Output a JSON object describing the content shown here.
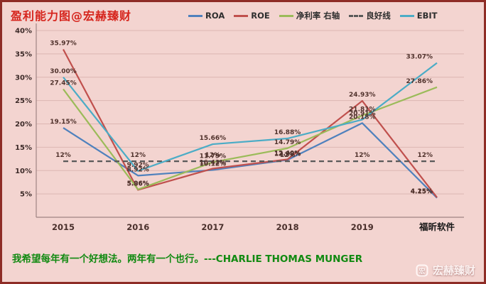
{
  "title": "盈利能力图@宏赫臻财",
  "footer": {
    "quote": "我希望每年有一个好想法。两年有一个也行。---CHARLIE THOMAS MUNGER",
    "watermark": "宏赫臻财",
    "logo_glyph": "宏"
  },
  "colors": {
    "background": "#f3d4d0",
    "frame_border": "#8e2c26",
    "title": "#d6251d",
    "quote": "#118a11",
    "gridline": "#dcb6b2",
    "axis": "#a08484"
  },
  "chart_data": {
    "type": "line",
    "title": "盈利能力图@宏赫臻财",
    "categories": [
      "2015",
      "2016",
      "2017",
      "2018",
      "2019",
      "福昕软件"
    ],
    "ylim": [
      0,
      40
    ],
    "ytick_values": [
      5,
      10,
      15,
      20,
      25,
      30,
      35,
      40
    ],
    "ytick_labels": [
      "5%",
      "10%",
      "15%",
      "20%",
      "25%",
      "30%",
      "35%",
      "40%"
    ],
    "grid": true,
    "legend_position": "top",
    "series": [
      {
        "name": "ROA",
        "color": "#4F81BD",
        "dashed": false,
        "values": [
          19.15,
          8.92,
          10.12,
          12.28,
          20.18,
          4.15
        ],
        "labels": [
          "19.15%",
          "8.92%",
          "10.12%",
          "12.28%",
          "20.18%",
          "4.15%"
        ]
      },
      {
        "name": "ROE",
        "color": "#C0504D",
        "dashed": false,
        "values": [
          35.97,
          5.86,
          10.42,
          12.4,
          24.93,
          4.25
        ],
        "labels": [
          "35.97%",
          "5.86%",
          "10.42%",
          "12.40%",
          "24.93%",
          "4.25%"
        ]
      },
      {
        "name": "净利率 右轴",
        "color": "#9BBB59",
        "dashed": false,
        "values": [
          27.45,
          5.96,
          11.79,
          14.79,
          21.81,
          27.86
        ],
        "labels": [
          "27.45%",
          "5.96%",
          "11.79%",
          "14.79%",
          "21.81%",
          "27.86%"
        ]
      },
      {
        "name": "良好线",
        "color": "#595959",
        "dashed": true,
        "values": [
          12,
          12,
          12,
          12,
          12,
          12
        ],
        "labels": [
          "12%",
          "12%",
          "12%",
          "12%",
          "12%",
          "12%"
        ]
      },
      {
        "name": "EBIT",
        "color": "#4BACC6",
        "dashed": false,
        "values": [
          30.0,
          9.92,
          15.66,
          16.88,
          20.91,
          33.07
        ],
        "labels": [
          "30.00%",
          "9.92%",
          "15.66%",
          "16.88%",
          "20.91%",
          "33.07%"
        ]
      }
    ]
  }
}
